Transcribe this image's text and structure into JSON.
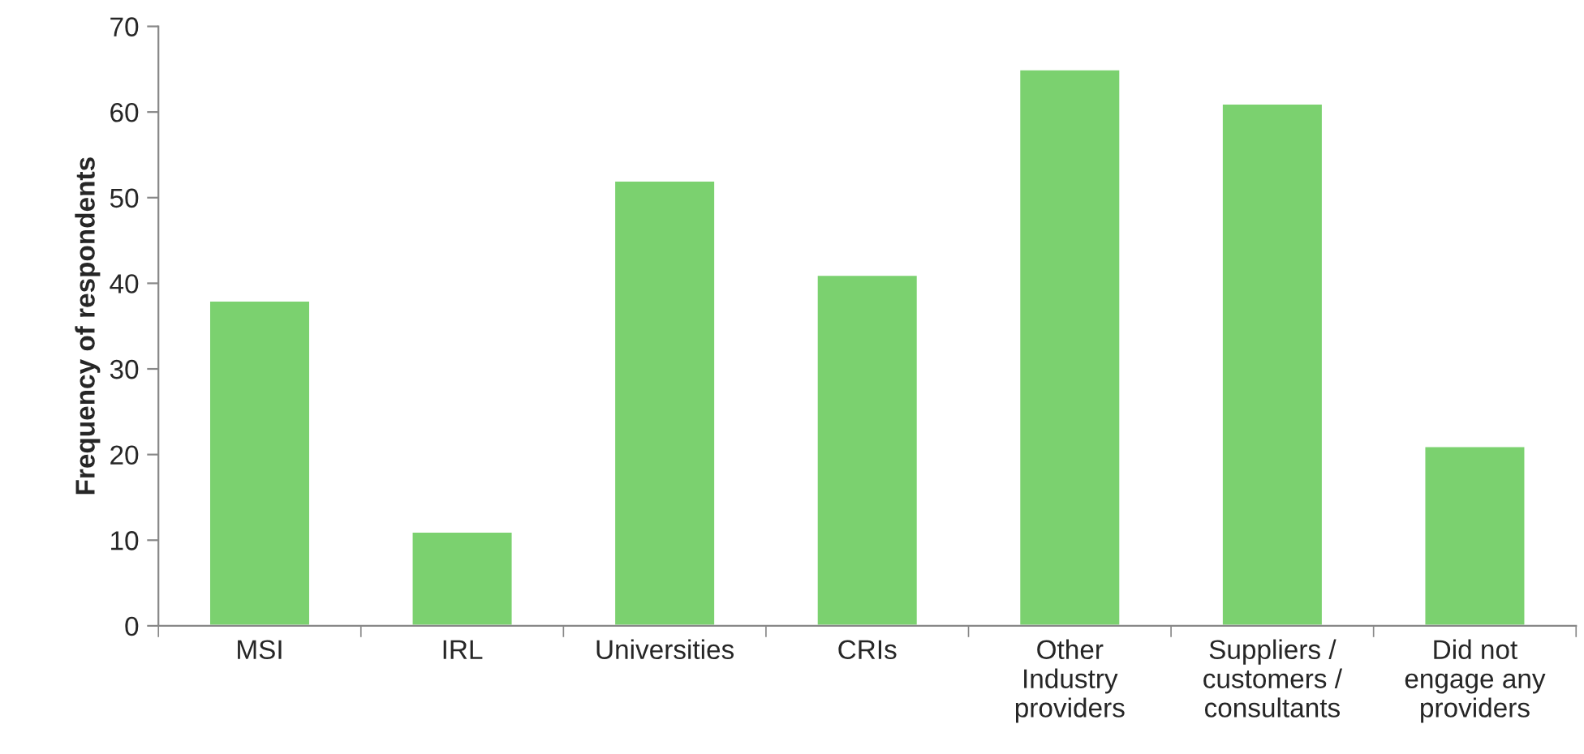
{
  "chart_data": {
    "type": "bar",
    "ylabel": "Frequency of respondents",
    "categories": [
      "MSI",
      "IRL",
      "Universities",
      "CRIs",
      "Other\nIndustry\nproviders",
      "Suppliers /\ncustomers /\nconsultants",
      "Did not\nengage any\nproviders"
    ],
    "values": [
      38,
      11,
      52,
      41,
      65,
      61,
      21
    ],
    "color": "#7bd16f",
    "ylim": [
      0,
      70
    ],
    "yticks": [
      0,
      10,
      20,
      30,
      40,
      50,
      60,
      70
    ],
    "grid": false,
    "legend": false
  }
}
